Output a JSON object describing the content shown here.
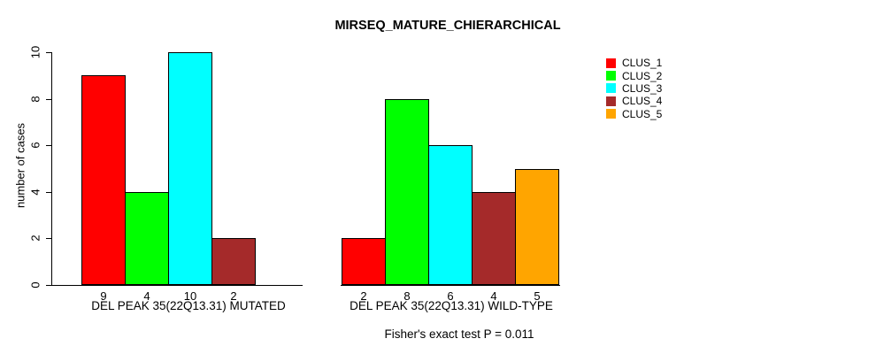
{
  "chart_data": {
    "type": "bar",
    "title": "MIRSEQ_MATURE_CHIERARCHICAL",
    "xlabel": "",
    "ylabel": "number of cases",
    "ylim": [
      0,
      10
    ],
    "yticks": [
      0,
      2,
      4,
      6,
      8,
      10
    ],
    "grid": false,
    "legend_position": "right",
    "bar_value_labels_shown": true,
    "categories": [
      "DEL PEAK 35(22Q13.31) MUTATED",
      "DEL PEAK 35(22Q13.31) WILD-TYPE"
    ],
    "series": [
      {
        "name": "CLUS_1",
        "color": "#FF0000",
        "values": [
          9,
          2
        ]
      },
      {
        "name": "CLUS_2",
        "color": "#00FF00",
        "values": [
          4,
          8
        ]
      },
      {
        "name": "CLUS_3",
        "color": "#00FFFF",
        "values": [
          10,
          6
        ]
      },
      {
        "name": "CLUS_4",
        "color": "#A52A2A",
        "values": [
          2,
          4
        ]
      },
      {
        "name": "CLUS_5",
        "color": "#FFA500",
        "values": [
          0,
          5
        ]
      }
    ],
    "annotation": "Fisher's exact test P = 0.011"
  }
}
